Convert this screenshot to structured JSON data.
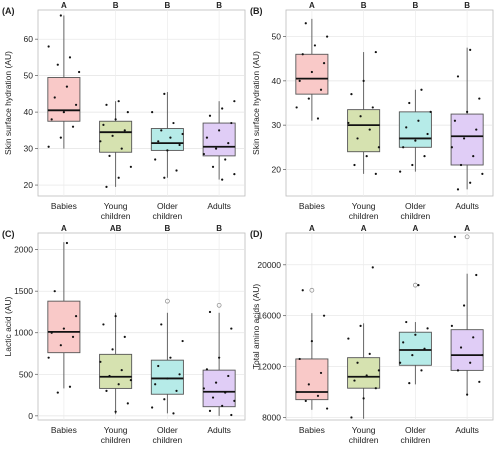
{
  "chart_data": [
    {
      "panel": "(A)",
      "type": "box",
      "ylabel": "Skin surface hydration (AU)",
      "ylim": [
        17,
        68
      ],
      "yticks": [
        20,
        30,
        40,
        50,
        60
      ],
      "categories": [
        "Babies",
        "Young|children",
        "Older|children",
        "Adults"
      ],
      "significance": [
        "A",
        "B",
        "B",
        "B"
      ],
      "colors": [
        "#f9c9c8",
        "#d6e2b0",
        "#b6ebe8",
        "#e0cdf6"
      ],
      "boxes": [
        {
          "whisker_low": 30,
          "q1": 37.5,
          "median": 40.5,
          "q3": 49.5,
          "whisker_high": 66.5,
          "outliers": []
        },
        {
          "whisker_low": 19.5,
          "q1": 29,
          "median": 34.5,
          "q3": 37.5,
          "whisker_high": 43,
          "outliers": []
        },
        {
          "whisker_low": 22,
          "q1": 29.5,
          "median": 31.5,
          "q3": 35.5,
          "whisker_high": 45.5,
          "outliers": []
        },
        {
          "whisker_low": 21.5,
          "q1": 28,
          "median": 30.5,
          "q3": 37,
          "whisker_high": 43,
          "outliers": []
        }
      ],
      "points": [
        [
          30.5,
          33,
          36,
          38,
          40,
          42,
          44,
          47,
          51,
          53,
          55,
          58,
          66.5
        ],
        [
          19.5,
          22,
          25,
          28,
          30,
          32,
          33.5,
          35,
          36.5,
          38,
          40,
          42,
          43
        ],
        [
          22,
          24,
          27,
          29.5,
          31,
          32,
          33,
          34,
          35,
          37,
          40,
          45
        ],
        [
          21.5,
          23,
          25,
          27,
          28.5,
          30,
          31.5,
          33,
          35,
          37,
          39,
          41,
          43
        ]
      ]
    },
    {
      "panel": "(B)",
      "type": "box",
      "ylabel": "Skin surface hydration (AU)",
      "ylim": [
        14,
        56
      ],
      "yticks": [
        20,
        30,
        40,
        50
      ],
      "categories": [
        "Babies",
        "Young|children",
        "Older|children",
        "Adults"
      ],
      "significance": [
        "A",
        "B",
        "B",
        "B"
      ],
      "colors": [
        "#f9c9c8",
        "#d6e2b0",
        "#b6ebe8",
        "#e0cdf6"
      ],
      "boxes": [
        {
          "whisker_low": 31,
          "q1": 37,
          "median": 40.5,
          "q3": 46,
          "whisker_high": 54,
          "outliers": []
        },
        {
          "whisker_low": 19,
          "q1": 24,
          "median": 30,
          "q3": 33.5,
          "whisker_high": 46.5,
          "outliers": []
        },
        {
          "whisker_low": 19.5,
          "q1": 25,
          "median": 27,
          "q3": 33,
          "whisker_high": 38,
          "outliers": []
        },
        {
          "whisker_low": 15.5,
          "q1": 21,
          "median": 27.5,
          "q3": 32.5,
          "whisker_high": 47.5,
          "outliers": []
        }
      ],
      "points": [
        [
          31.5,
          34,
          36,
          38,
          40,
          42,
          44,
          46,
          48,
          50,
          53
        ],
        [
          19,
          21,
          23,
          25,
          27,
          29,
          30.5,
          32,
          34,
          37,
          40,
          46.5
        ],
        [
          19.5,
          21,
          23,
          25,
          26.5,
          28,
          29.5,
          31,
          33,
          35,
          38
        ],
        [
          15.5,
          17,
          19,
          21,
          23,
          25,
          27,
          29,
          31,
          33,
          36,
          41,
          47
        ]
      ]
    },
    {
      "panel": "(C)",
      "type": "box",
      "ylabel": "Lactic acid (AU)",
      "ylim": [
        -50,
        2200
      ],
      "yticks": [
        0,
        500,
        1000,
        1500,
        2000
      ],
      "categories": [
        "Babies",
        "Young|children",
        "Older|children",
        "Adults"
      ],
      "significance": [
        "A",
        "AB",
        "B",
        "B"
      ],
      "colors": [
        "#f9c9c8",
        "#d6e2b0",
        "#b6ebe8",
        "#e0cdf6"
      ],
      "boxes": [
        {
          "whisker_low": 330,
          "q1": 760,
          "median": 1010,
          "q3": 1380,
          "whisker_high": 2090,
          "outliers": []
        },
        {
          "whisker_low": 20,
          "q1": 330,
          "median": 470,
          "q3": 740,
          "whisker_high": 1240,
          "outliers": []
        },
        {
          "whisker_low": 30,
          "q1": 260,
          "median": 450,
          "q3": 670,
          "whisker_high": 1240,
          "outliers": [
            1380
          ]
        },
        {
          "whisker_low": 0,
          "q1": 110,
          "median": 290,
          "q3": 550,
          "whisker_high": 1240,
          "outliers": [
            1330
          ]
        }
      ],
      "points": [
        [
          280,
          350,
          700,
          850,
          950,
          1000,
          1050,
          1200,
          1500,
          2080
        ],
        [
          50,
          150,
          300,
          380,
          430,
          480,
          550,
          650,
          800,
          950,
          1100,
          1200
        ],
        [
          30,
          100,
          200,
          300,
          380,
          450,
          500,
          600,
          700,
          900,
          1100
        ],
        [
          10,
          60,
          120,
          180,
          220,
          280,
          330,
          400,
          480,
          560,
          700,
          1050,
          1250
        ]
      ]
    },
    {
      "panel": "(D)",
      "type": "box",
      "ylabel": "Total amino acids (AU)",
      "ylim": [
        7800,
        22500
      ],
      "yticks": [
        8000,
        12000,
        16000,
        20000
      ],
      "categories": [
        "Babies",
        "Young|children",
        "Older|children",
        "Adults"
      ],
      "significance": [
        "A",
        "A",
        "A",
        "A"
      ],
      "colors": [
        "#f9c9c8",
        "#d6e2b0",
        "#b6ebe8",
        "#e0cdf6"
      ],
      "boxes": [
        {
          "whisker_low": 8600,
          "q1": 9400,
          "median": 10000,
          "q3": 12600,
          "whisker_high": 16200,
          "outliers": [
            18000
          ]
        },
        {
          "whisker_low": 7900,
          "q1": 10300,
          "median": 11200,
          "q3": 12700,
          "whisker_high": 15400,
          "outliers": []
        },
        {
          "whisker_low": 10600,
          "q1": 12100,
          "median": 13300,
          "q3": 14700,
          "whisker_high": 15500,
          "outliers": [
            18400
          ]
        },
        {
          "whisker_low": 9700,
          "q1": 11700,
          "median": 12900,
          "q3": 14900,
          "whisker_high": 19300,
          "outliers": [
            22200
          ]
        }
      ],
      "points": [
        [
          8700,
          9300,
          9700,
          10000,
          10600,
          11500,
          12600,
          14000,
          16000,
          18000
        ],
        [
          8000,
          9500,
          10300,
          10900,
          11300,
          11700,
          12300,
          13000,
          14200,
          15200,
          19800
        ],
        [
          10700,
          11700,
          12300,
          12900,
          13400,
          13900,
          14500,
          15000,
          15500,
          18400
        ],
        [
          9800,
          10800,
          11700,
          12300,
          12900,
          13500,
          14300,
          15200,
          16800,
          19200,
          22200
        ]
      ]
    }
  ]
}
